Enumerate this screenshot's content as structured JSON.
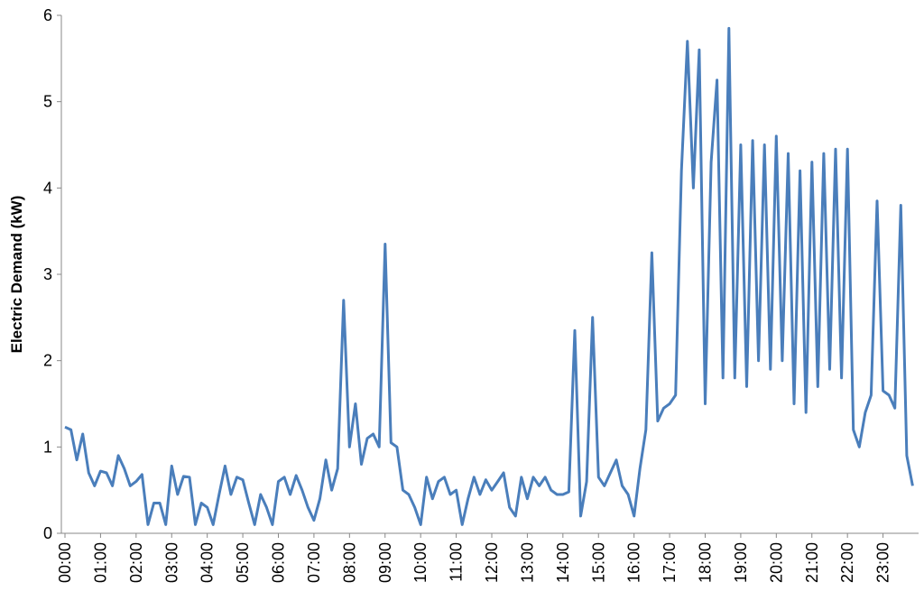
{
  "chart_data": {
    "type": "line",
    "y_label": "Electric Demand (kW)",
    "x": [
      0,
      10,
      20,
      30,
      40,
      50,
      60,
      70,
      80,
      90,
      100,
      110,
      120,
      130,
      140,
      150,
      160,
      170,
      180,
      190,
      200,
      210,
      220,
      230,
      240,
      250,
      260,
      270,
      280,
      290,
      300,
      310,
      320,
      330,
      340,
      350,
      360,
      370,
      380,
      390,
      400,
      410,
      420,
      430,
      440,
      450,
      460,
      470,
      480,
      490,
      500,
      510,
      520,
      530,
      540,
      550,
      560,
      570,
      580,
      590,
      600,
      610,
      620,
      630,
      640,
      650,
      660,
      670,
      680,
      690,
      700,
      710,
      720,
      730,
      740,
      750,
      760,
      770,
      780,
      790,
      800,
      810,
      820,
      830,
      840,
      850,
      860,
      870,
      880,
      890,
      900,
      910,
      920,
      930,
      940,
      950,
      960,
      970,
      980,
      990,
      1000,
      1010,
      1020,
      1030,
      1040,
      1050,
      1060,
      1070,
      1080,
      1090,
      1100,
      1110,
      1120,
      1130,
      1140,
      1150,
      1160,
      1170,
      1180,
      1190,
      1200,
      1210,
      1220,
      1230,
      1240,
      1250,
      1260,
      1270,
      1280,
      1290,
      1300,
      1310,
      1320,
      1330,
      1340,
      1350,
      1360,
      1370,
      1380,
      1390,
      1400,
      1410,
      1420,
      1430
    ],
    "series": [
      {
        "name": "Electric Demand",
        "color": "#4a7ebb",
        "values": [
          1.23,
          1.2,
          0.85,
          1.15,
          0.7,
          0.55,
          0.72,
          0.7,
          0.55,
          0.9,
          0.75,
          0.55,
          0.6,
          0.68,
          0.1,
          0.35,
          0.35,
          0.1,
          0.78,
          0.45,
          0.66,
          0.65,
          0.1,
          0.35,
          0.3,
          0.1,
          0.45,
          0.78,
          0.45,
          0.65,
          0.62,
          0.35,
          0.1,
          0.45,
          0.3,
          0.1,
          0.6,
          0.65,
          0.45,
          0.67,
          0.5,
          0.3,
          0.15,
          0.4,
          0.85,
          0.5,
          0.75,
          2.7,
          1.0,
          1.5,
          0.8,
          1.1,
          1.15,
          1.0,
          3.35,
          1.05,
          1.0,
          0.5,
          0.45,
          0.3,
          0.1,
          0.65,
          0.4,
          0.6,
          0.65,
          0.45,
          0.5,
          0.1,
          0.4,
          0.65,
          0.45,
          0.62,
          0.5,
          0.6,
          0.7,
          0.3,
          0.2,
          0.65,
          0.4,
          0.65,
          0.55,
          0.65,
          0.5,
          0.45,
          0.45,
          0.48,
          2.35,
          0.2,
          0.6,
          2.5,
          0.65,
          0.55,
          0.7,
          0.85,
          0.55,
          0.45,
          0.2,
          0.75,
          1.2,
          3.25,
          1.3,
          1.45,
          1.5,
          1.6,
          4.2,
          5.7,
          4.0,
          5.6,
          1.5,
          4.3,
          5.25,
          1.8,
          5.85,
          1.8,
          4.5,
          1.7,
          4.55,
          2.0,
          4.5,
          1.9,
          4.6,
          2.0,
          4.4,
          1.5,
          4.2,
          1.4,
          4.3,
          1.7,
          4.4,
          1.9,
          4.45,
          1.8,
          4.45,
          1.2,
          1.0,
          1.4,
          1.6,
          3.85,
          1.65,
          1.6,
          1.45,
          3.8,
          0.9,
          0.55
        ]
      }
    ],
    "xlim": [
      0,
      1440
    ],
    "xticks": [
      {
        "value": 0,
        "label": "00:00"
      },
      {
        "value": 60,
        "label": "01:00"
      },
      {
        "value": 120,
        "label": "02:00"
      },
      {
        "value": 180,
        "label": "03:00"
      },
      {
        "value": 240,
        "label": "04:00"
      },
      {
        "value": 300,
        "label": "05:00"
      },
      {
        "value": 360,
        "label": "06:00"
      },
      {
        "value": 420,
        "label": "07:00"
      },
      {
        "value": 480,
        "label": "08:00"
      },
      {
        "value": 540,
        "label": "09:00"
      },
      {
        "value": 600,
        "label": "10:00"
      },
      {
        "value": 660,
        "label": "11:00"
      },
      {
        "value": 720,
        "label": "12:00"
      },
      {
        "value": 780,
        "label": "13:00"
      },
      {
        "value": 840,
        "label": "14:00"
      },
      {
        "value": 900,
        "label": "15:00"
      },
      {
        "value": 960,
        "label": "16:00"
      },
      {
        "value": 1020,
        "label": "17:00"
      },
      {
        "value": 1080,
        "label": "18:00"
      },
      {
        "value": 1140,
        "label": "19:00"
      },
      {
        "value": 1200,
        "label": "20:00"
      },
      {
        "value": 1260,
        "label": "21:00"
      },
      {
        "value": 1320,
        "label": "22:00"
      },
      {
        "value": 1380,
        "label": "23:00"
      }
    ],
    "ylim": [
      0,
      6
    ],
    "yticks": [
      0,
      1,
      2,
      3,
      4,
      5,
      6
    ],
    "grid": false
  }
}
